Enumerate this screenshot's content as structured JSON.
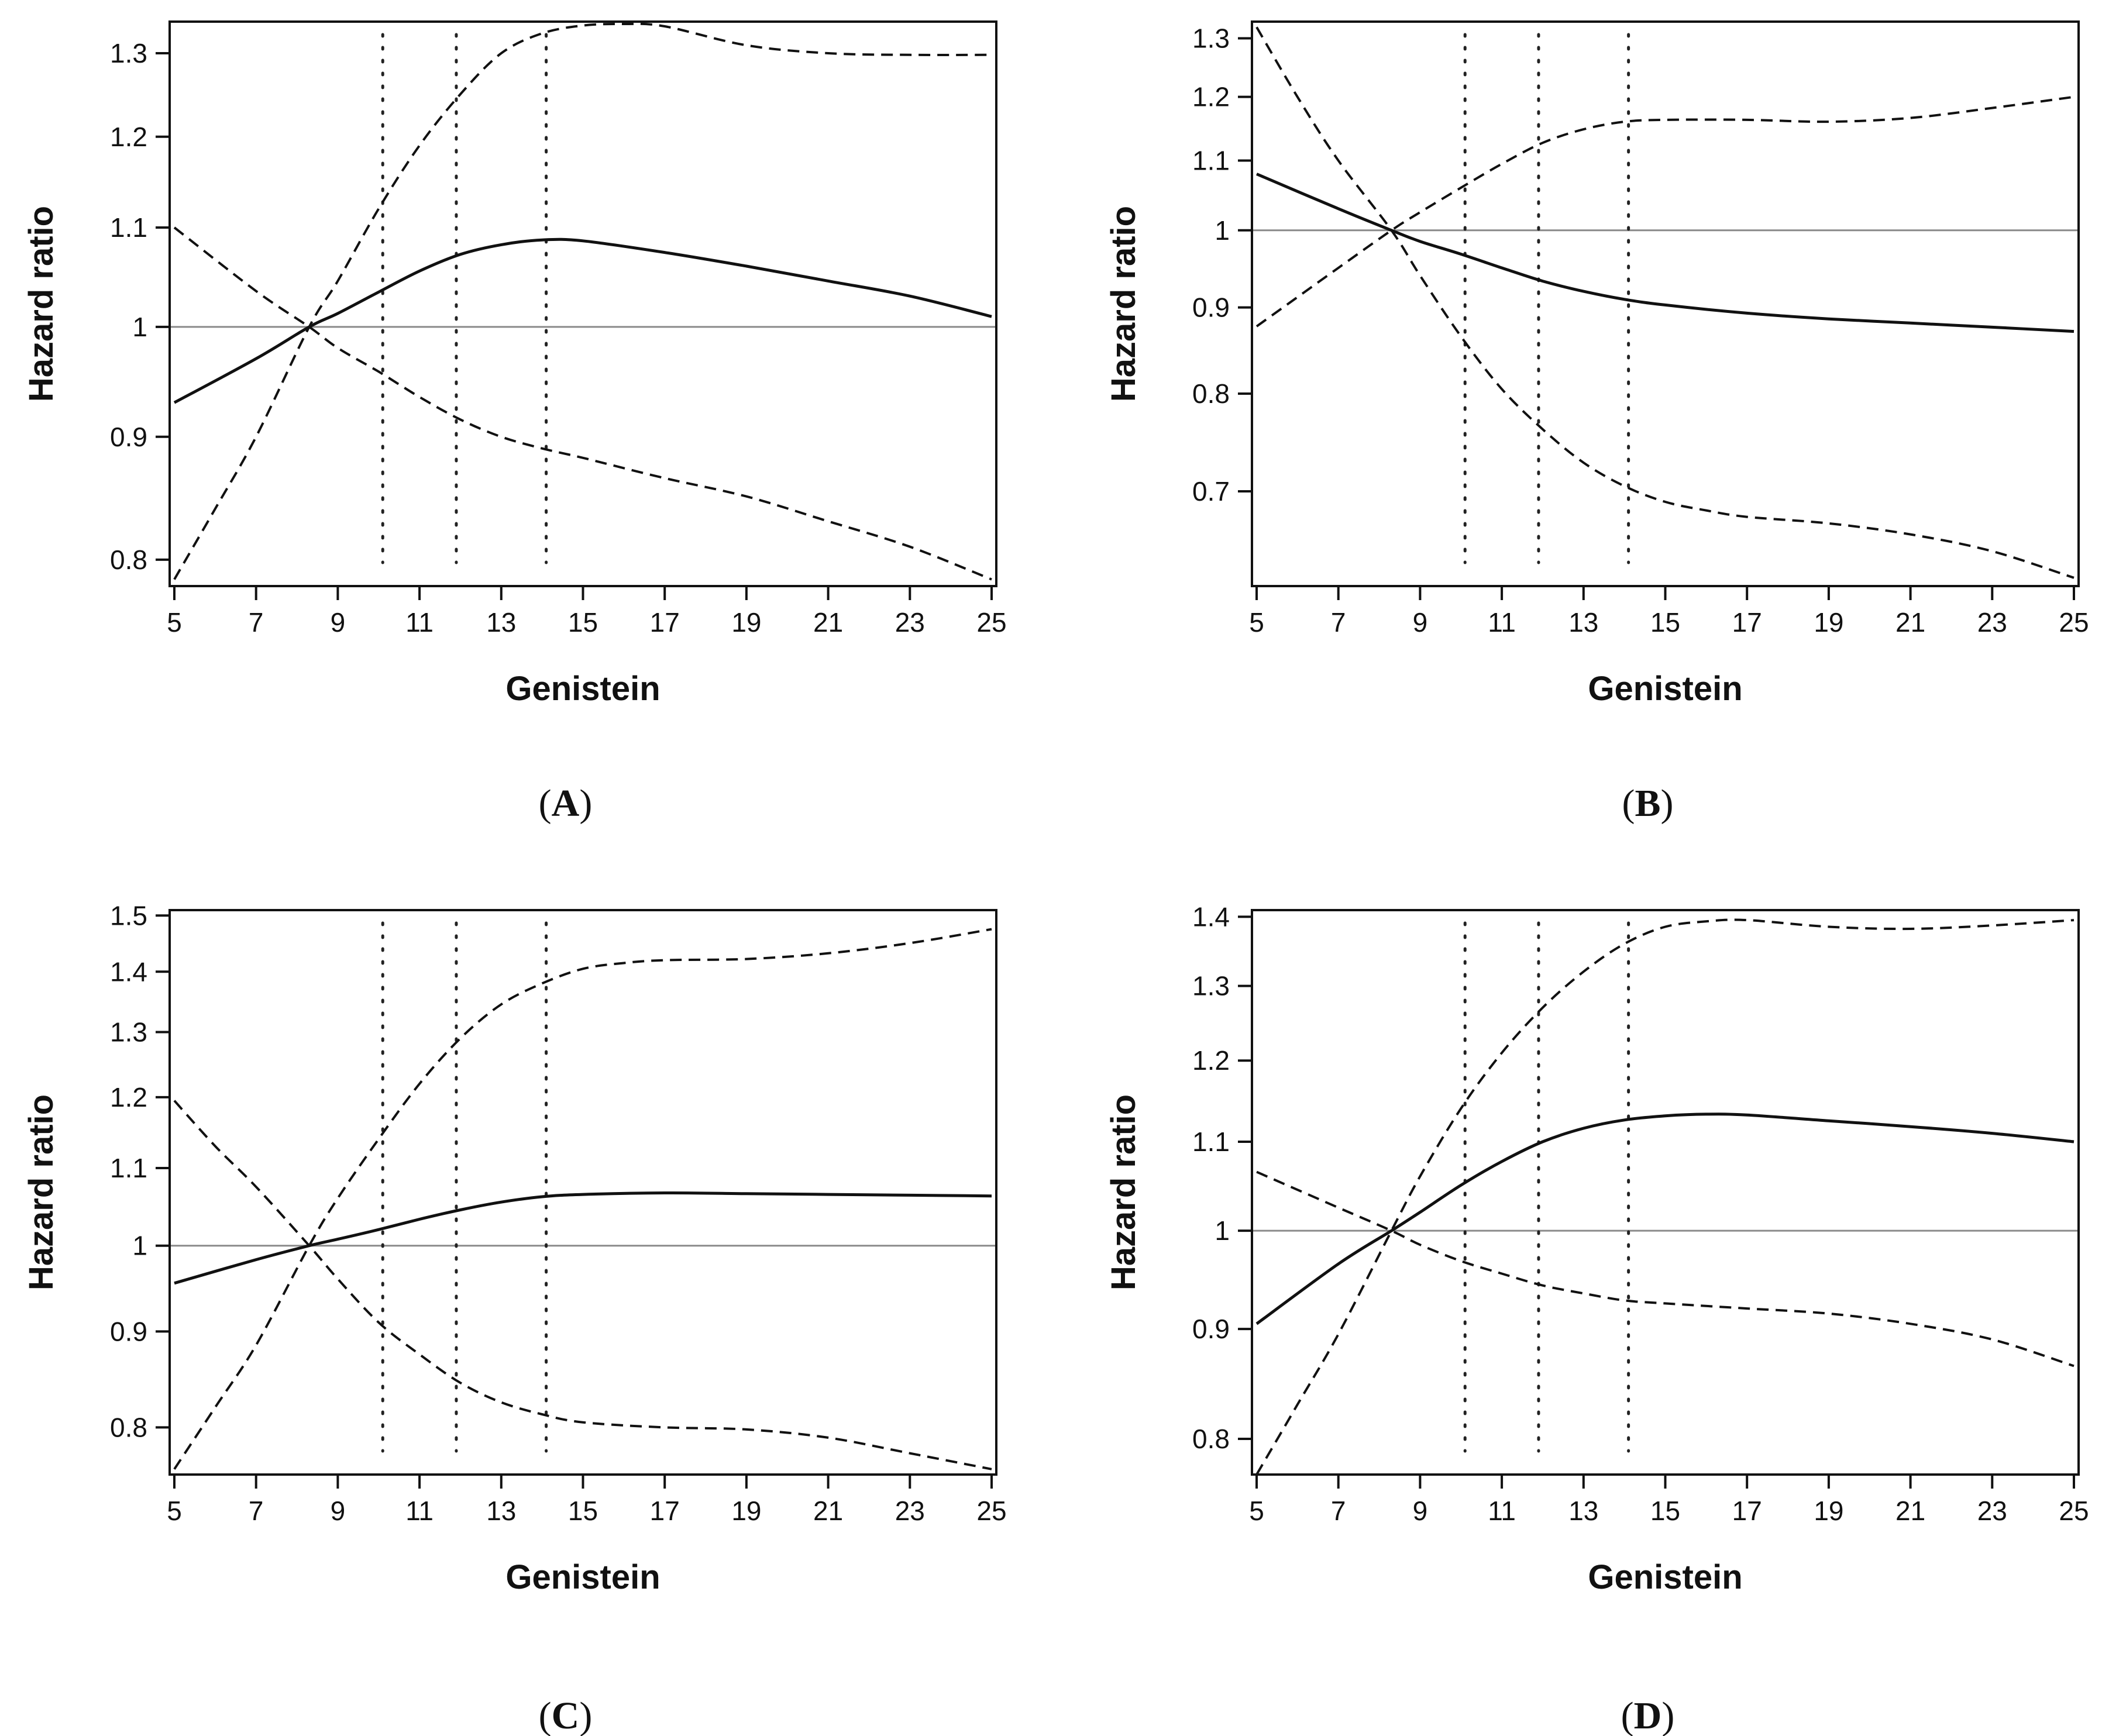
{
  "figure": {
    "x_axis_label": "Genistein",
    "y_axis_label": "Hazard ratio"
  },
  "chart_data": [
    {
      "type": "line",
      "panel": "A",
      "title": "",
      "xlabel": "Genistein",
      "ylabel": "Hazard ratio",
      "xlim": [
        5,
        25
      ],
      "ylim": [
        0.78,
        1.34
      ],
      "y_scale": "log",
      "x_ticks": [
        5,
        7,
        9,
        11,
        13,
        15,
        17,
        19,
        21,
        23,
        25
      ],
      "y_ticks": [
        0.8,
        0.9,
        1,
        1.1,
        1.2,
        1.3
      ],
      "y_tick_labels": [
        "0.8",
        "0.9",
        "1",
        "1.1",
        "1.2",
        "1.3"
      ],
      "reference_line": 1,
      "knots": [
        10.1,
        11.9,
        14.1
      ],
      "series": [
        {
          "name": "Hazard ratio",
          "style": "solid",
          "x": [
            5,
            7,
            8.3,
            9,
            10,
            11,
            12,
            13,
            14,
            15,
            17,
            19,
            21,
            23,
            25
          ],
          "y": [
            0.93,
            0.97,
            1.0,
            1.013,
            1.034,
            1.055,
            1.072,
            1.082,
            1.087,
            1.086,
            1.074,
            1.06,
            1.045,
            1.03,
            1.01
          ]
        },
        {
          "name": "Upper 95% CI",
          "style": "dashed",
          "x": [
            5,
            6,
            7,
            8.3,
            9,
            10,
            11,
            12,
            13,
            14,
            15,
            16,
            17,
            19,
            21,
            23,
            25
          ],
          "y": [
            0.785,
            0.84,
            0.9,
            1.0,
            1.045,
            1.12,
            1.19,
            1.25,
            1.3,
            1.325,
            1.335,
            1.337,
            1.334,
            1.31,
            1.3,
            1.298,
            1.298
          ]
        },
        {
          "name": "Lower 95% CI",
          "style": "dashed",
          "x": [
            5,
            7,
            8.3,
            9,
            10,
            11,
            12,
            13,
            14,
            15,
            17,
            19,
            21,
            23,
            25
          ],
          "y": [
            1.1,
            1.035,
            1.0,
            0.98,
            0.958,
            0.935,
            0.915,
            0.9,
            0.89,
            0.882,
            0.865,
            0.85,
            0.83,
            0.81,
            0.785
          ]
        }
      ]
    },
    {
      "type": "line",
      "panel": "B",
      "title": "",
      "xlabel": "Genistein",
      "ylabel": "Hazard ratio",
      "xlim": [
        5,
        25
      ],
      "ylim": [
        0.615,
        1.33
      ],
      "y_scale": "log",
      "x_ticks": [
        5,
        7,
        9,
        11,
        13,
        15,
        17,
        19,
        21,
        23,
        25
      ],
      "y_ticks": [
        0.7,
        0.8,
        0.9,
        1,
        1.1,
        1.2,
        1.3
      ],
      "y_tick_labels": [
        "0.7",
        "0.8",
        "0.9",
        "1",
        "1.1",
        "1.2",
        "1.3"
      ],
      "reference_line": 1,
      "knots": [
        10.1,
        11.9,
        14.1
      ],
      "series": [
        {
          "name": "Hazard ratio",
          "style": "solid",
          "x": [
            5,
            7,
            8.3,
            9,
            10,
            11,
            12,
            13,
            14,
            15,
            17,
            19,
            21,
            23,
            25
          ],
          "y": [
            1.08,
            1.03,
            1.0,
            0.985,
            0.968,
            0.95,
            0.933,
            0.92,
            0.91,
            0.903,
            0.893,
            0.886,
            0.881,
            0.876,
            0.871
          ]
        },
        {
          "name": "Upper 95% CI",
          "style": "dashed",
          "x": [
            5,
            7,
            8.3,
            9,
            10,
            11,
            12,
            13,
            14,
            15,
            17,
            19,
            21,
            23,
            25
          ],
          "y": [
            0.877,
            0.95,
            1.0,
            1.025,
            1.06,
            1.095,
            1.127,
            1.148,
            1.16,
            1.163,
            1.163,
            1.16,
            1.166,
            1.182,
            1.2
          ]
        },
        {
          "name": "Lower 95% CI",
          "style": "dashed",
          "x": [
            5,
            6,
            7,
            8.3,
            9,
            10,
            11,
            12,
            13,
            14,
            15,
            16,
            17,
            19,
            21,
            23,
            25
          ],
          "y": [
            1.32,
            1.2,
            1.1,
            1.0,
            0.94,
            0.865,
            0.805,
            0.762,
            0.728,
            0.705,
            0.69,
            0.682,
            0.676,
            0.67,
            0.66,
            0.645,
            0.622
          ]
        }
      ]
    },
    {
      "type": "line",
      "panel": "C",
      "title": "",
      "xlabel": "Genistein",
      "ylabel": "Hazard ratio",
      "xlim": [
        5,
        25
      ],
      "ylim": [
        0.755,
        1.51
      ],
      "y_scale": "log",
      "x_ticks": [
        5,
        7,
        9,
        11,
        13,
        15,
        17,
        19,
        21,
        23,
        25
      ],
      "y_ticks": [
        0.8,
        0.9,
        1,
        1.1,
        1.2,
        1.3,
        1.4,
        1.5
      ],
      "y_tick_labels": [
        "0.8",
        "0.9",
        "1",
        "1.1",
        "1.2",
        "1.3",
        "1.4",
        "1.5"
      ],
      "reference_line": 1,
      "knots": [
        10.1,
        11.9,
        14.1
      ],
      "series": [
        {
          "name": "Hazard ratio",
          "style": "solid",
          "x": [
            5,
            7,
            8.3,
            9,
            10,
            11,
            12,
            13,
            14,
            15,
            17,
            19,
            21,
            23,
            25
          ],
          "y": [
            0.955,
            0.983,
            1.0,
            1.008,
            1.02,
            1.033,
            1.045,
            1.055,
            1.062,
            1.065,
            1.067,
            1.066,
            1.065,
            1.064,
            1.063
          ]
        },
        {
          "name": "Upper 95% CI",
          "style": "dashed",
          "x": [
            5,
            6,
            7,
            8.3,
            9,
            10,
            11,
            12,
            13,
            14,
            15,
            16,
            17,
            19,
            21,
            23,
            25
          ],
          "y": [
            0.76,
            0.82,
            0.885,
            1.0,
            1.06,
            1.14,
            1.22,
            1.29,
            1.345,
            1.38,
            1.405,
            1.415,
            1.42,
            1.422,
            1.432,
            1.45,
            1.475
          ]
        },
        {
          "name": "Lower 95% CI",
          "style": "dashed",
          "x": [
            5,
            6,
            7,
            8.3,
            9,
            10,
            11,
            12,
            13,
            14,
            15,
            17,
            19,
            21,
            23,
            25
          ],
          "y": [
            1.195,
            1.13,
            1.075,
            1.0,
            0.96,
            0.91,
            0.875,
            0.845,
            0.825,
            0.813,
            0.805,
            0.8,
            0.798,
            0.79,
            0.775,
            0.76
          ]
        }
      ]
    },
    {
      "type": "line",
      "panel": "D",
      "title": "",
      "xlabel": "Genistein",
      "ylabel": "Hazard ratio",
      "xlim": [
        5,
        25
      ],
      "ylim": [
        0.77,
        1.41
      ],
      "y_scale": "log",
      "x_ticks": [
        5,
        7,
        9,
        11,
        13,
        15,
        17,
        19,
        21,
        23,
        25
      ],
      "y_ticks": [
        0.8,
        0.9,
        1,
        1.1,
        1.2,
        1.3,
        1.4
      ],
      "y_tick_labels": [
        "0.8",
        "0.9",
        "1",
        "1.1",
        "1.2",
        "1.3",
        "1.4"
      ],
      "reference_line": 1,
      "knots": [
        10.1,
        11.9,
        14.1
      ],
      "series": [
        {
          "name": "Hazard ratio",
          "style": "solid",
          "x": [
            5,
            7,
            8.3,
            9,
            10,
            11,
            12,
            13,
            14,
            15,
            16,
            17,
            19,
            21,
            23,
            25
          ],
          "y": [
            0.905,
            0.965,
            1.0,
            1.02,
            1.05,
            1.077,
            1.1,
            1.116,
            1.126,
            1.131,
            1.133,
            1.132,
            1.125,
            1.118,
            1.11,
            1.1
          ]
        },
        {
          "name": "Upper 95% CI",
          "style": "dashed",
          "x": [
            5,
            6,
            7,
            8.3,
            9,
            10,
            11,
            12,
            13,
            14,
            15,
            16,
            17,
            19,
            21,
            23,
            25
          ],
          "y": [
            0.77,
            0.83,
            0.895,
            1.0,
            1.06,
            1.14,
            1.21,
            1.27,
            1.32,
            1.36,
            1.385,
            1.393,
            1.395,
            1.385,
            1.382,
            1.387,
            1.395
          ]
        },
        {
          "name": "Lower 95% CI",
          "style": "dashed",
          "x": [
            5,
            7,
            8.3,
            9,
            10,
            11,
            12,
            13,
            14,
            15,
            17,
            19,
            21,
            23,
            25
          ],
          "y": [
            1.065,
            1.025,
            1.0,
            0.985,
            0.968,
            0.955,
            0.943,
            0.935,
            0.928,
            0.925,
            0.92,
            0.915,
            0.905,
            0.89,
            0.865
          ]
        }
      ]
    }
  ]
}
